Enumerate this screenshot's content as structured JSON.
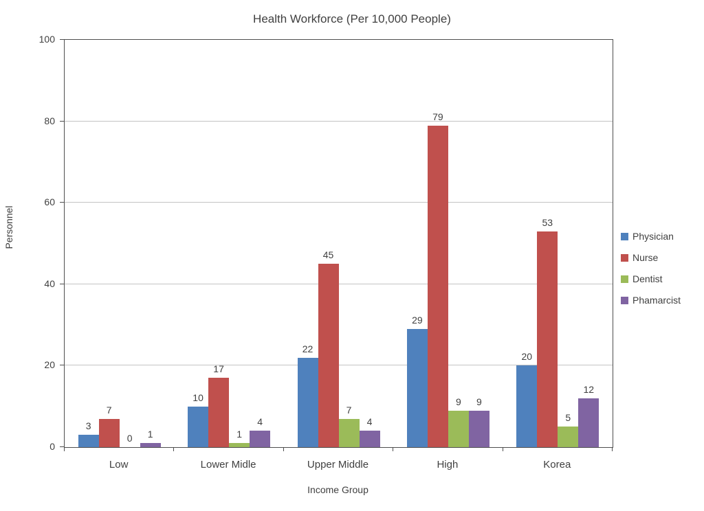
{
  "chart_data": {
    "type": "bar",
    "title": "Health Workforce (Per 10,000 People)",
    "xlabel": "Income Group",
    "ylabel": "Personnel",
    "categories": [
      "Low",
      "Lower Midle",
      "Upper Middle",
      "High",
      "Korea"
    ],
    "series": [
      {
        "name": "Physician",
        "color": "#4F81BD",
        "values": [
          3,
          10,
          22,
          29,
          20
        ]
      },
      {
        "name": "Nurse",
        "color": "#C0504D",
        "values": [
          7,
          17,
          45,
          79,
          53
        ]
      },
      {
        "name": "Dentist",
        "color": "#9BBB59",
        "values": [
          0,
          1,
          7,
          9,
          5
        ]
      },
      {
        "name": "Phamarcist",
        "color": "#8064A2",
        "values": [
          1,
          4,
          4,
          9,
          12
        ]
      }
    ],
    "ylim": [
      0,
      100
    ],
    "yticks": [
      0,
      20,
      40,
      60,
      80,
      100
    ],
    "grid": true,
    "legend_position": "right",
    "data_labels": true,
    "colors": {
      "text": "#3F3F3F",
      "gridline": "#C3C3C3",
      "axis": "#4D4D4D",
      "background": "#FFFFFF"
    }
  }
}
